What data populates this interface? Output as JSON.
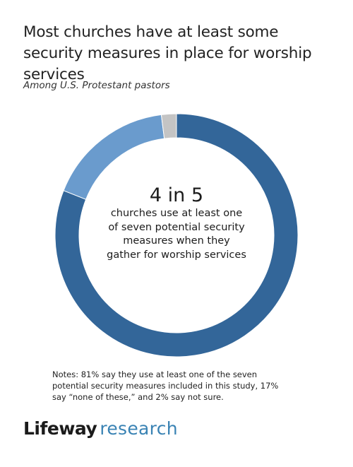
{
  "title": "Most churches have at least some security measures in place for worship services",
  "subtitle": "Among U.S. Protestant pastors",
  "center": {
    "big": "4 in 5",
    "text": "churches use at least one of seven potential security measures when they gather for worship services"
  },
  "notes": "Notes: 81% say they use at least one of the seven potential security measures included in this study, 17% say “none of these,” and 2% say not sure.",
  "logo": {
    "word1": "Lifeway",
    "word2": "research"
  },
  "colors": {
    "use_measures": "#336699",
    "none": "#6a9bcd",
    "not_sure": "#c4c4c4",
    "logo_accent": "#3a83b4"
  },
  "chart_data": {
    "type": "pie",
    "donut": true,
    "start": "12 o'clock",
    "direction": "clockwise",
    "labels": [
      "Use at least one security measure",
      "None of these",
      "Not sure"
    ],
    "values": [
      81,
      17,
      2
    ],
    "colors": [
      "#336699",
      "#6a9bcd",
      "#c4c4c4"
    ]
  }
}
